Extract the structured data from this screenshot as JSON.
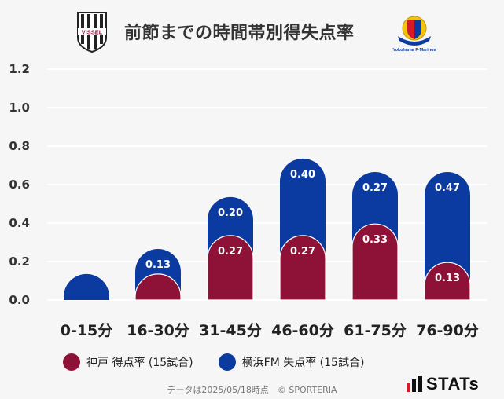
{
  "header": {
    "title": "前節までの時間帯別得失点率",
    "left_logo_text": "VISSEL",
    "right_logo_text": "Yokohama F·Marinos"
  },
  "chart_data": {
    "type": "bar",
    "stacked": true,
    "title": "前節までの時間帯別得失点率",
    "xlabel": "",
    "ylabel": "",
    "ylim": [
      0,
      1.2
    ],
    "yticks": [
      "0.0",
      "0.2",
      "0.4",
      "0.6",
      "0.8",
      "1.0",
      "1.2"
    ],
    "ytick_values": [
      0,
      0.2,
      0.4,
      0.6,
      0.8,
      1.0,
      1.2
    ],
    "categories": [
      "0-15分",
      "16-30分",
      "31-45分",
      "46-60分",
      "61-75分",
      "76-90分"
    ],
    "series": [
      {
        "name": "神戸 得点率 (15試合)",
        "color": "#8e1238",
        "values": [
          0,
          0.07,
          0.27,
          0.27,
          0.33,
          0.13
        ],
        "labels": [
          "",
          "",
          "0.27",
          "0.27",
          "0.33",
          "0.13"
        ]
      },
      {
        "name": "横浜FM 失点率 (15試合)",
        "color": "#0b3aa1",
        "values": [
          0.07,
          0.13,
          0.2,
          0.4,
          0.27,
          0.47
        ],
        "labels": [
          "",
          "0.13",
          "0.20",
          "0.40",
          "0.27",
          "0.47"
        ]
      }
    ],
    "grid": true,
    "legend": "bottom"
  },
  "legend": {
    "kobe_label": "神戸 得点率 (15試合)",
    "yokohama_label": "横浜FM 失点率 (15試合)"
  },
  "footer": {
    "note": "データは2025/05/18時点　© SPORTERIA",
    "brand": "STATs"
  },
  "colors": {
    "kobe": "#8e1238",
    "yokohama": "#0b3aa1",
    "grid": "#ffffff",
    "axis_text": "#333333"
  }
}
